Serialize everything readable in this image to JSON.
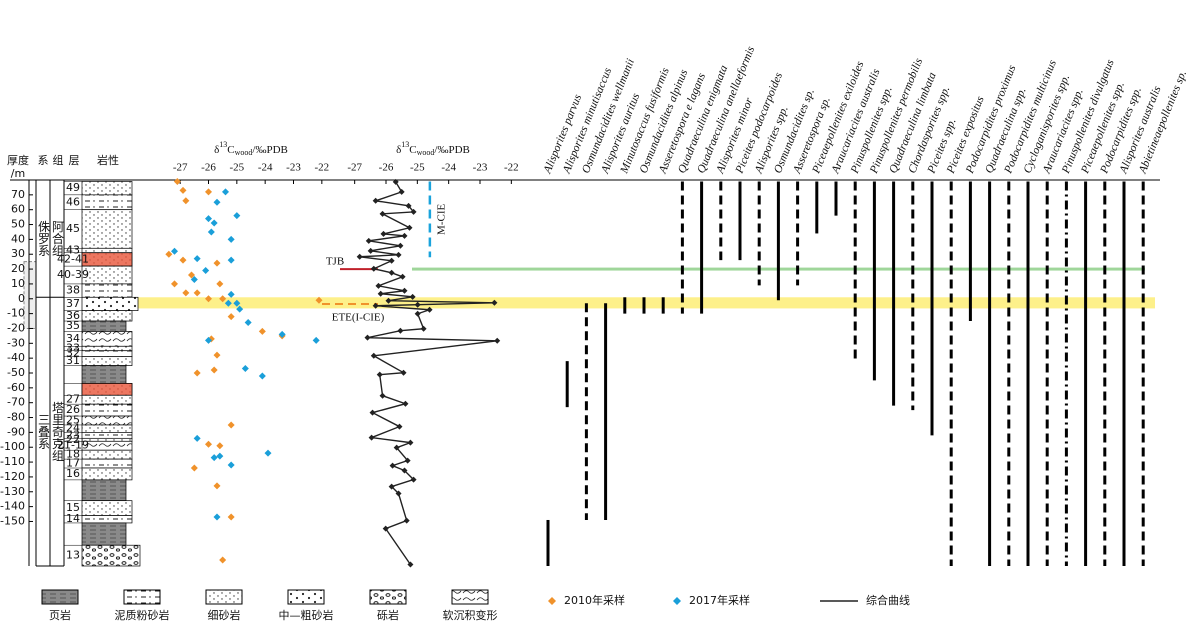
{
  "header": {
    "depth_label": [
      "厚度",
      "/m"
    ],
    "system": "系",
    "formation": "组",
    "layer": "层",
    "lithology": "岩性"
  },
  "chart_data": {
    "type": "stratigraphic",
    "ylim": [
      80,
      -180
    ],
    "yticks": [
      70,
      60,
      50,
      40,
      30,
      20,
      10,
      0,
      -10,
      -20,
      -30,
      -40,
      -50,
      -60,
      -70,
      -80,
      -90,
      -100,
      -110,
      -120,
      -130,
      -140,
      -150
    ],
    "units": [
      {
        "system": "侏罗系",
        "formation": "阿合组",
        "top": 80,
        "bottom": 1
      },
      {
        "system": "三叠系",
        "formation": "塔里奇克组",
        "top": 1,
        "bottom": -180
      }
    ],
    "beds": [
      {
        "label": "49",
        "top": 79,
        "lith": "fine"
      },
      {
        "label": "46",
        "top": 70,
        "lith": "silt"
      },
      {
        "label": "45",
        "top": 60,
        "lith": "fine"
      },
      {
        "label": "43",
        "top": 34,
        "lith": "fine"
      },
      {
        "label": "42-41",
        "top": 31,
        "lith": "fine",
        "color": "#e8553a"
      },
      {
        "label": "40-39",
        "top": 22,
        "lith": "fine"
      },
      {
        "label": "38",
        "top": 10,
        "lith": "silt"
      },
      {
        "label": "37",
        "top": 1,
        "lith": "coarse"
      },
      {
        "label": "36",
        "top": -8,
        "lith": "fine"
      },
      {
        "label": "35",
        "top": -15,
        "lith": "shale"
      },
      {
        "label": "34",
        "top": -22,
        "lith": "deform"
      },
      {
        "label": "33",
        "top": -32,
        "lith": "fine"
      },
      {
        "label": "32",
        "top": -35,
        "lith": "silt"
      },
      {
        "label": "31",
        "top": -39,
        "lith": "fine"
      },
      {
        "label": null,
        "top": -45,
        "lith": "shale"
      },
      {
        "label": null,
        "top": -57,
        "lith": "fine",
        "color": "#e8553a"
      },
      {
        "label": "27",
        "top": -65,
        "lith": "fine"
      },
      {
        "label": "26",
        "top": -71,
        "lith": "silt"
      },
      {
        "label": "25",
        "top": -79,
        "lith": "deform"
      },
      {
        "label": "24",
        "top": -85,
        "lith": "fine"
      },
      {
        "label": "23",
        "top": -90,
        "lith": "silt"
      },
      {
        "label": "22",
        "top": -94,
        "lith": "fine"
      },
      {
        "label": "21-19",
        "top": -96,
        "lith": "deform"
      },
      {
        "label": "18",
        "top": -102,
        "lith": "fine"
      },
      {
        "label": "17",
        "top": -108,
        "lith": "silt"
      },
      {
        "label": "16",
        "top": -114,
        "lith": "fine"
      },
      {
        "label": null,
        "top": -122,
        "lith": "shale"
      },
      {
        "label": "15",
        "top": -136,
        "lith": "fine"
      },
      {
        "label": "14",
        "top": -146,
        "lith": "silt"
      },
      {
        "label": null,
        "top": -151,
        "lith": "shale"
      },
      {
        "label": "13",
        "top": -166,
        "lith": "conglomerate"
      }
    ],
    "panels": [
      {
        "title": [
          "δ",
          "13",
          "C",
          "wood",
          "/‰PDB"
        ],
        "xlim": [
          -27.5,
          -21.5
        ],
        "xticks": [
          -27,
          -26,
          -25,
          -24,
          -23,
          -22
        ]
      },
      {
        "title": [
          "δ",
          "13",
          "C",
          "wood",
          "/‰PDB"
        ],
        "xlim": [
          -27.5,
          -21.5
        ],
        "xticks": [
          -27,
          -26,
          -25,
          -24,
          -23,
          -22
        ]
      }
    ],
    "series": [
      {
        "name": "2010年采样",
        "color": "#f0922b",
        "panel": 0,
        "marker": "diamond",
        "x": [
          -27.1,
          -26.9,
          -26,
          -26.8,
          -27.4,
          -26.9,
          -25.7,
          -26.6,
          -27.2,
          -25.6,
          -26.8,
          -26,
          -25.5,
          -26.4,
          -25.2,
          -24.1,
          -23.4,
          -22.1,
          -25.9,
          -25.7,
          -25.8,
          -26.4,
          -25.2,
          -26,
          -25.6,
          -26.5,
          -25.7,
          -25.2,
          -25.5
        ],
        "y": [
          79,
          73,
          72,
          66,
          30,
          26,
          24,
          16,
          10,
          10,
          4,
          0,
          0,
          4,
          -12,
          -22,
          -25,
          -1,
          -27,
          -38,
          -48,
          -50,
          -85,
          -98,
          -99,
          -114,
          -126,
          -147,
          -176
        ]
      },
      {
        "name": "2017年采样",
        "color": "#1a9fd9",
        "panel": 0,
        "marker": "diamond",
        "x": [
          -25.4,
          -25.7,
          -26,
          -25,
          -25.8,
          -25.9,
          -25.2,
          -27.2,
          -26.4,
          -25.2,
          -26.1,
          -26.5,
          -25.2,
          -25.3,
          -25,
          -24.9,
          -24.6,
          -23.4,
          -22.2,
          -26,
          -24.7,
          -24.1,
          -26.4,
          -25.8,
          -25.6,
          -25.2,
          -23.9,
          -25.7
        ],
        "y": [
          72,
          65,
          54,
          56,
          51,
          45,
          40,
          32,
          27,
          26,
          19,
          13,
          3,
          -3,
          -3,
          -7,
          -16,
          -24,
          -28,
          -28,
          -47,
          -52,
          -94,
          -107,
          -106,
          -112,
          -104,
          -147
        ]
      },
      {
        "name": "综合曲线",
        "color": "#222222",
        "panel": 1,
        "marker": "line",
        "x": [
          -25.69,
          -25.5,
          -26.33,
          -25.28,
          -25.12,
          -26.11,
          -25.25,
          -26.08,
          -25.41,
          -26.55,
          -25.54,
          -26.49,
          -25.6,
          -26.84,
          -25.82,
          -26.39,
          -25.82,
          -25.47,
          -26.24,
          -25.41,
          -26.17,
          -25.15,
          -25.92,
          -22.54,
          -24.99,
          -26.33,
          -24.61,
          -24.99,
          -24.8,
          -25.54,
          -26.59,
          -22.45,
          -26.39,
          -25.44,
          -26.2,
          -26.11,
          -25.38,
          -26.43,
          -25.57,
          -26.46,
          -25.22,
          -25.66,
          -25.31,
          -25.79,
          -25.41,
          -25.12,
          -25.82,
          -25.6,
          -25.34,
          -26.01,
          -25.22
        ],
        "y": [
          78.7,
          72,
          66,
          62.6,
          58.5,
          57.2,
          47.8,
          43.7,
          42.4,
          39,
          35.7,
          32.3,
          29.6,
          28.3,
          25.6,
          20.2,
          17.5,
          14.8,
          8.7,
          5.4,
          3.4,
          1.3,
          -1.3,
          -2.7,
          -4,
          -4.7,
          -7.4,
          -10.1,
          -20.2,
          -21.5,
          -26.2,
          -28.3,
          -38.4,
          -49.8,
          -51.1,
          -65.3,
          -70.7,
          -76.7,
          -86.1,
          -93.5,
          -96.9,
          -100.3,
          -109,
          -112.4,
          -115.7,
          -121.8,
          -126.5,
          -131.2,
          -149.4,
          -154.8,
          -179
        ]
      }
    ],
    "annotations": [
      {
        "text": "M-CIE",
        "color": "#1aa3dc",
        "x": -24.6,
        "top": 79,
        "bottom": 28
      },
      {
        "text": "TJB",
        "color": "#c0202a",
        "depth": 20
      },
      {
        "text": "ETE(I-CIE)",
        "color": "#f0922b",
        "depth": -3.5
      }
    ],
    "bands": [
      {
        "color": "#fdf08a",
        "top": 1,
        "bottom": -6.5
      },
      {
        "color": "#9fd69a",
        "top": 21,
        "bottom": 19
      }
    ],
    "taxa": [
      {
        "name": "Alisporites parvus",
        "range": [
          -149,
          -180
        ],
        "style": "solid"
      },
      {
        "name": "Alisporites minutisaccus",
        "range": [
          -42,
          -73
        ],
        "style": "solid"
      },
      {
        "name": "Osmundacidites wellmanii",
        "range": [
          -3,
          -149
        ],
        "style": "dashed"
      },
      {
        "name": "Alisporites auritus",
        "range": [
          -3,
          -149
        ],
        "style": "solid"
      },
      {
        "name": "Minutosaccus fusiformis",
        "range": [
          1,
          -10
        ],
        "style": "solid"
      },
      {
        "name": "Osmundacidites alpinus",
        "range": [
          1,
          -10
        ],
        "style": "solid"
      },
      {
        "name": "Asseretospora e lagans",
        "range": [
          1,
          -10
        ],
        "style": "solid"
      },
      {
        "name": "Quadraeculina enigmata",
        "range": [
          79,
          -10
        ],
        "style": "dashed"
      },
      {
        "name": "Quadraeculina anellaeformis",
        "range": [
          79,
          -10
        ],
        "style": "solid"
      },
      {
        "name": "Alisporites minor",
        "range": [
          79,
          26
        ],
        "style": "dashed"
      },
      {
        "name": "Piceites podocarpoides",
        "range": [
          79,
          26
        ],
        "style": "solid"
      },
      {
        "name": "Alisporites spp.",
        "range": [
          79,
          9
        ],
        "style": "dashed"
      },
      {
        "name": "Osmundacidites sp.",
        "range": [
          79,
          -1
        ],
        "style": "solid"
      },
      {
        "name": "Asseretospora sp.",
        "range": [
          79,
          9
        ],
        "style": "dashed"
      },
      {
        "name": "Piceaepollenites exiloides",
        "range": [
          79,
          44
        ],
        "style": "solid"
      },
      {
        "name": "Araucariacites australis",
        "range": [
          79,
          56
        ],
        "style": "solid"
      },
      {
        "name": "Pinuspollenites spp.",
        "range": [
          79,
          -42
        ],
        "style": "dashed"
      },
      {
        "name": "Pinuspollenites permobilis",
        "range": [
          79,
          -55
        ],
        "style": "solid"
      },
      {
        "name": "Quadraeculina limbata",
        "range": [
          79,
          -72
        ],
        "style": "solid"
      },
      {
        "name": "Chordasporites spp.",
        "range": [
          79,
          -75
        ],
        "style": "dashed"
      },
      {
        "name": "Piceites spp.",
        "range": [
          79,
          -92
        ],
        "style": "solid"
      },
      {
        "name": "Piceites expositus",
        "range": [
          79,
          -180
        ],
        "style": "dashed"
      },
      {
        "name": "Podocarpidites proximus",
        "range": [
          79,
          -15
        ],
        "style": "solid"
      },
      {
        "name": "Quadraeculina spp.",
        "range": [
          79,
          -180
        ],
        "style": "solid"
      },
      {
        "name": "Podocarpidites multicinus",
        "range": [
          79,
          -180
        ],
        "style": "dashed"
      },
      {
        "name": "Cycloganisporites spp.",
        "range": [
          79,
          -180
        ],
        "style": "solid"
      },
      {
        "name": "Araucariacites spp.",
        "range": [
          79,
          -180
        ],
        "style": "dashed"
      },
      {
        "name": "Pinuspollenites divulgatus",
        "range": [
          79,
          -180
        ],
        "style": "dashdot"
      },
      {
        "name": "Piceaepollenites spp.",
        "range": [
          79,
          -180
        ],
        "style": "solid"
      },
      {
        "name": "Podocarpidites spp.",
        "range": [
          79,
          -180
        ],
        "style": "dashed"
      },
      {
        "name": "Alisporites australis",
        "range": [
          79,
          -180
        ],
        "style": "solid"
      },
      {
        "name": "Abietineaepollenites sp.",
        "range": [
          79,
          -180
        ],
        "style": "dashed"
      }
    ]
  },
  "lithology_legend": [
    {
      "name": "页岩",
      "lith": "shale"
    },
    {
      "name": "泥质粉砂岩",
      "lith": "silt"
    },
    {
      "name": "细砂岩",
      "lith": "fine"
    },
    {
      "name": "中—粗砂岩",
      "lith": "coarse"
    },
    {
      "name": "砾岩",
      "lith": "conglomerate"
    },
    {
      "name": "软沉积变形",
      "lith": "deform"
    }
  ]
}
